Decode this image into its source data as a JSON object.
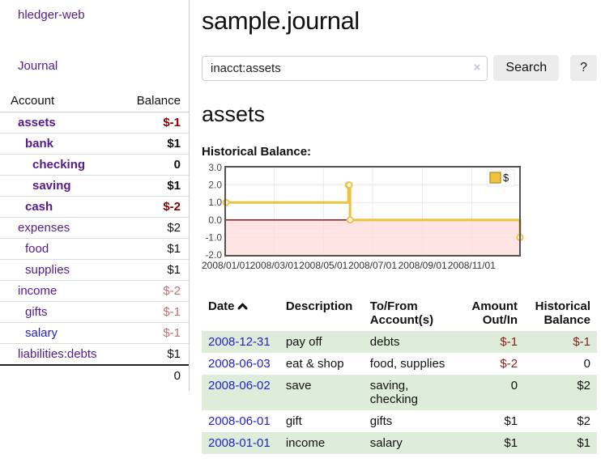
{
  "app": {
    "brand": "hledger-web",
    "nav_journal": "Journal"
  },
  "sidebar": {
    "columns": {
      "account": "Account",
      "balance": "Balance"
    },
    "accounts": [
      {
        "name": "assets",
        "balance": "$-1",
        "depth": 1,
        "bold": true,
        "neg": "strong"
      },
      {
        "name": "bank",
        "balance": "$1",
        "depth": 2,
        "bold": true,
        "neg": "none"
      },
      {
        "name": "checking",
        "balance": "0",
        "depth": 3,
        "bold": true,
        "neg": "none"
      },
      {
        "name": "saving",
        "balance": "$1",
        "depth": 3,
        "bold": true,
        "neg": "none"
      },
      {
        "name": "cash",
        "balance": "$-2",
        "depth": 2,
        "bold": true,
        "neg": "strong"
      },
      {
        "name": "expenses",
        "balance": "$2",
        "depth": 1,
        "bold": false,
        "neg": "none"
      },
      {
        "name": "food",
        "balance": "$1",
        "depth": 2,
        "bold": false,
        "neg": "none"
      },
      {
        "name": "supplies",
        "balance": "$1",
        "depth": 2,
        "bold": false,
        "neg": "none"
      },
      {
        "name": "income",
        "balance": "$-2",
        "depth": 1,
        "bold": false,
        "neg": "muted"
      },
      {
        "name": "gifts",
        "balance": "$-1",
        "depth": 2,
        "bold": false,
        "neg": "muted"
      },
      {
        "name": "salary",
        "balance": "$-1",
        "depth": 2,
        "bold": false,
        "neg": "muted",
        "link": "blue"
      },
      {
        "name": "liabilities:debts",
        "balance": "$1",
        "depth": 1,
        "bold": false,
        "neg": "none"
      }
    ],
    "total": "0"
  },
  "header": {
    "title": "sample.journal"
  },
  "search": {
    "value": "inacct:assets",
    "clear_icon": "×",
    "button": "Search",
    "help": "?"
  },
  "account_page": {
    "title": "assets",
    "chart_label": "Historical Balance:"
  },
  "chart_data": {
    "type": "line",
    "title": "Historical Balance:",
    "step": true,
    "series": [
      {
        "name": "$",
        "points": [
          [
            "2008-01-01",
            1
          ],
          [
            "2008-06-01",
            2
          ],
          [
            "2008-06-02",
            2
          ],
          [
            "2008-06-03",
            0
          ],
          [
            "2008-12-31",
            -1
          ]
        ]
      }
    ],
    "ylim": [
      -2,
      3
    ],
    "yticks": [
      "3.0",
      "2.0",
      "1.0",
      "0.0",
      "-1.0",
      "-2.0"
    ],
    "xticks": [
      {
        "label": "2008/01/01",
        "day": 0
      },
      {
        "label": "2008/03/01",
        "day": 60
      },
      {
        "label": "2008/05/01",
        "day": 121
      },
      {
        "label": "2008/07/01",
        "day": 182
      },
      {
        "label": "2008/09/01",
        "day": 244
      },
      {
        "label": "2008/11/01",
        "day": 305
      }
    ],
    "legend": "$",
    "legend_position": "top-right",
    "grid": true,
    "colors": {
      "line": "#EDC240",
      "line_border": "#b89c32",
      "negative_fill": "#ffdddd",
      "zero_line": "#8b0000",
      "grid": "#e8e8e8",
      "border": "#545454"
    }
  },
  "register": {
    "columns": [
      "Date",
      "Description",
      "To/From Account(s)",
      "Amount Out/In",
      "Historical Balance"
    ],
    "rows": [
      {
        "date": "2008-12-31",
        "description": "pay off",
        "accounts": "debts",
        "amount": "$-1",
        "balance": "$-1"
      },
      {
        "date": "2008-06-03",
        "description": "eat & shop",
        "accounts": "food, supplies",
        "amount": "$-2",
        "balance": "0"
      },
      {
        "date": "2008-06-02",
        "description": "save",
        "accounts": "saving,\nchecking",
        "amount": "0",
        "balance": "$2"
      },
      {
        "date": "2008-06-01",
        "description": "gift",
        "accounts": "gifts",
        "amount": "$1",
        "balance": "$2"
      },
      {
        "date": "2008-01-01",
        "description": "income",
        "accounts": "salary",
        "amount": "$1",
        "balance": "$1"
      }
    ]
  }
}
